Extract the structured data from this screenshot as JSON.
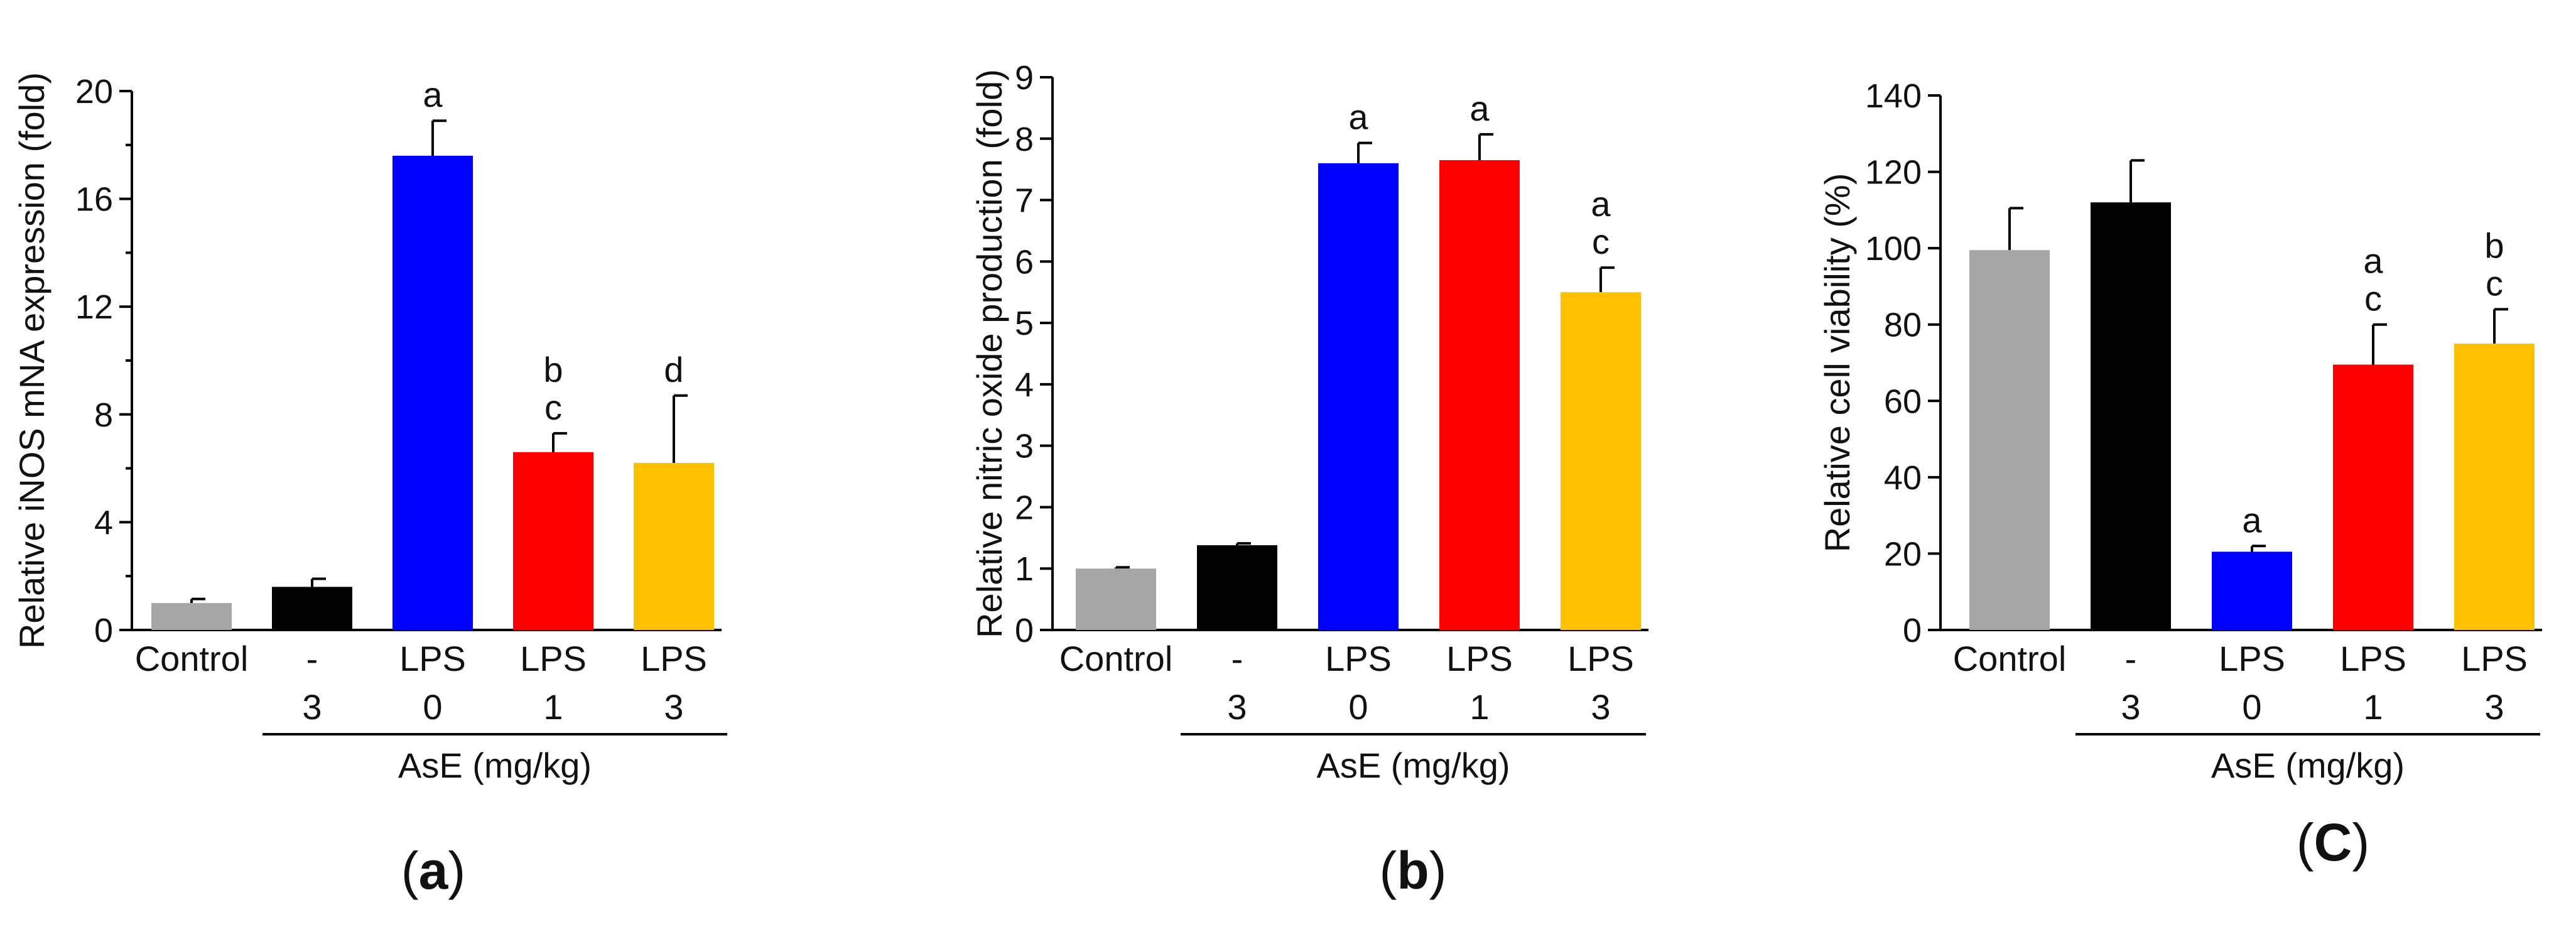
{
  "chart_data": [
    {
      "type": "bar",
      "panel_label": "a",
      "ylabel": "Relative iNOS mNA expression (fold)",
      "ylim": [
        0,
        20
      ],
      "yticks": [
        0,
        4,
        8,
        12,
        16,
        20
      ],
      "categories": [
        {
          "top": "Control",
          "bottom": ""
        },
        {
          "top": "-",
          "bottom": "3"
        },
        {
          "top": "LPS",
          "bottom": "0"
        },
        {
          "top": "LPS",
          "bottom": "1"
        },
        {
          "top": "LPS",
          "bottom": "3"
        }
      ],
      "values": [
        1.0,
        1.6,
        17.6,
        6.6,
        6.2
      ],
      "errors": [
        0.15,
        0.3,
        1.3,
        0.7,
        2.5
      ],
      "colors": [
        "#a6a6a6",
        "#000000",
        "#0000ff",
        "#ff0000",
        "#ffc000"
      ],
      "significance": [
        [],
        [],
        [
          "a"
        ],
        [
          "b",
          "c"
        ],
        [
          "d"
        ]
      ],
      "group_label": "AsE (mg/kg)"
    },
    {
      "type": "bar",
      "panel_label": "b",
      "ylabel": "Relative nitric oxide production (fold)",
      "ylim": [
        0,
        9
      ],
      "yticks": [
        0,
        1,
        2,
        3,
        4,
        5,
        6,
        7,
        8,
        9
      ],
      "categories": [
        {
          "top": "Control",
          "bottom": ""
        },
        {
          "top": "-",
          "bottom": "3"
        },
        {
          "top": "LPS",
          "bottom": "0"
        },
        {
          "top": "LPS",
          "bottom": "1"
        },
        {
          "top": "LPS",
          "bottom": "3"
        }
      ],
      "values": [
        1.0,
        1.38,
        7.6,
        7.65,
        5.5
      ],
      "errors": [
        0.02,
        0.03,
        0.33,
        0.42,
        0.4
      ],
      "colors": [
        "#a6a6a6",
        "#000000",
        "#0000ff",
        "#ff0000",
        "#ffc000"
      ],
      "significance": [
        [],
        [],
        [
          "a"
        ],
        [
          "a"
        ],
        [
          "a",
          "c"
        ]
      ],
      "group_label": "AsE (mg/kg)"
    },
    {
      "type": "bar",
      "panel_label": "C",
      "ylabel": "Relative cell viability (%)",
      "ylim": [
        0,
        140
      ],
      "yticks": [
        0,
        20,
        40,
        60,
        80,
        100,
        120,
        140
      ],
      "categories": [
        {
          "top": "Control",
          "bottom": ""
        },
        {
          "top": "-",
          "bottom": "3"
        },
        {
          "top": "LPS",
          "bottom": "0"
        },
        {
          "top": "LPS",
          "bottom": "1"
        },
        {
          "top": "LPS",
          "bottom": "3"
        }
      ],
      "values": [
        99.5,
        112,
        20.5,
        69.5,
        75
      ],
      "errors": [
        11,
        11,
        1.5,
        10.5,
        9
      ],
      "colors": [
        "#a6a6a6",
        "#000000",
        "#0000ff",
        "#ff0000",
        "#ffc000"
      ],
      "significance": [
        [],
        [],
        [
          "a"
        ],
        [
          "a",
          "c"
        ],
        [
          "b",
          "c"
        ]
      ],
      "group_label": "AsE (mg/kg)"
    }
  ]
}
